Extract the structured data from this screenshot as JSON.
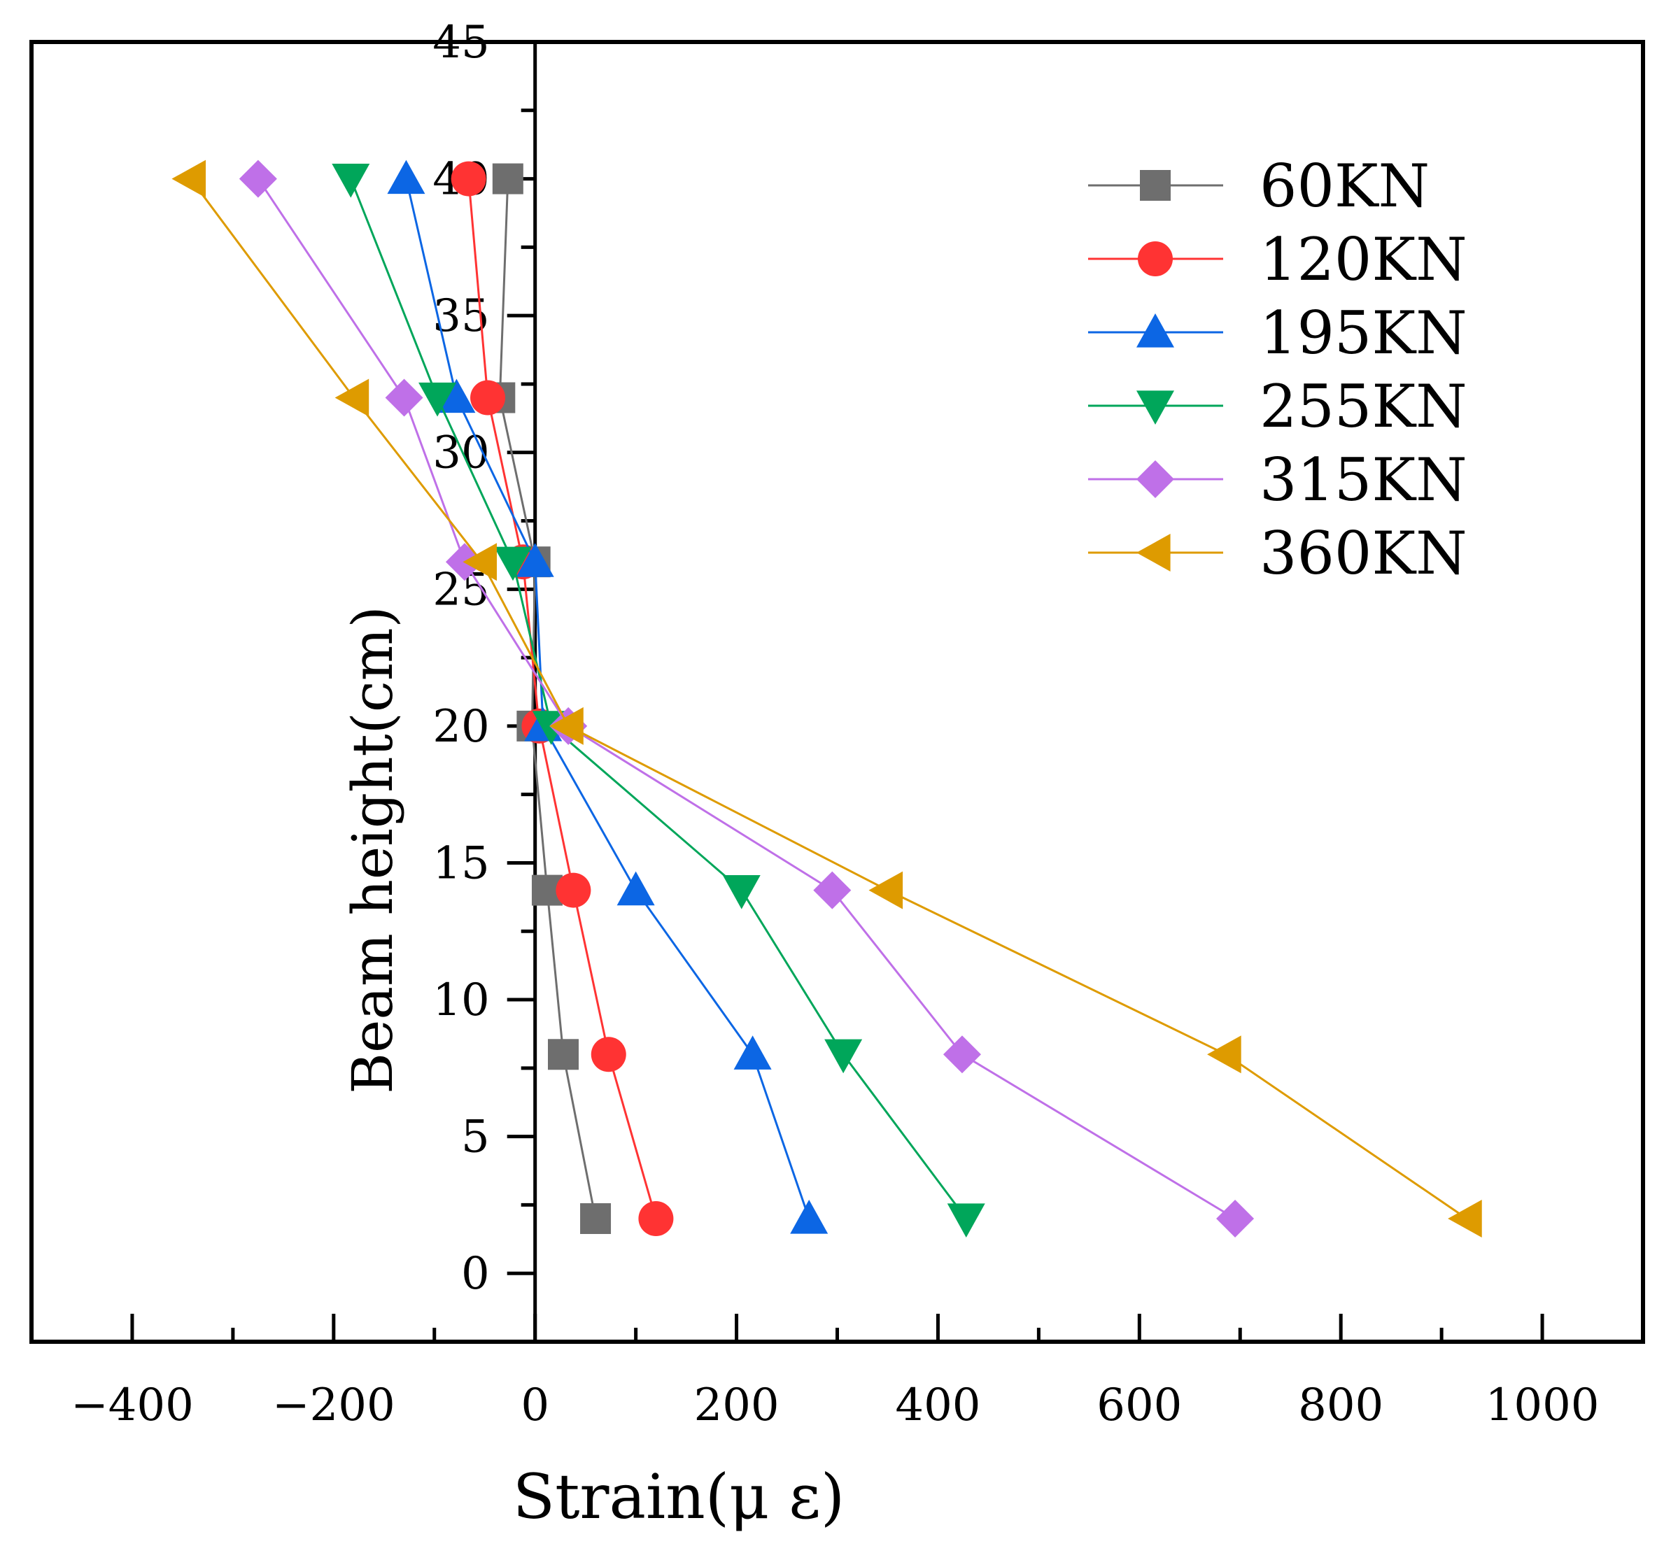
{
  "chart_data": {
    "type": "line",
    "xlabel": "Strain(μ ε)",
    "ylabel": "Beam height(cm)",
    "xlim": [
      -500,
      1100
    ],
    "ylim": [
      -2.5,
      45
    ],
    "xticks": [
      -400,
      -200,
      0,
      200,
      400,
      600,
      800,
      1000
    ],
    "xtick_labels": [
      "−400",
      "−200",
      "0",
      "200",
      "400",
      "600",
      "800",
      "1000"
    ],
    "yticks": [
      0,
      5,
      10,
      15,
      20,
      25,
      30,
      35,
      40,
      45
    ],
    "ytick_labels": [
      "0",
      "5",
      "10",
      "15",
      "20",
      "25",
      "30",
      "35",
      "40",
      "45"
    ],
    "legend_position": "top-right",
    "grid": false,
    "series": [
      {
        "name": "60KN",
        "color": "#6e6e6e",
        "marker": "square",
        "points": [
          [
            60,
            2
          ],
          [
            28,
            8
          ],
          [
            12,
            14
          ],
          [
            -3,
            20
          ],
          [
            0,
            26
          ],
          [
            -35,
            32
          ],
          [
            -27,
            40
          ]
        ]
      },
      {
        "name": "120KN",
        "color": "#ff3333",
        "marker": "circle",
        "points": [
          [
            120,
            2
          ],
          [
            73,
            8
          ],
          [
            38,
            14
          ],
          [
            4,
            20
          ],
          [
            -12,
            26
          ],
          [
            -47,
            32
          ],
          [
            -66,
            40
          ]
        ]
      },
      {
        "name": "195KN",
        "color": "#0c66e4",
        "marker": "triangle-up",
        "points": [
          [
            272,
            2
          ],
          [
            216,
            8
          ],
          [
            100,
            14
          ],
          [
            8,
            20
          ],
          [
            0,
            26
          ],
          [
            -78,
            32
          ],
          [
            -128,
            40
          ]
        ]
      },
      {
        "name": "255KN",
        "color": "#00a65a",
        "marker": "triangle-down",
        "points": [
          [
            428,
            2
          ],
          [
            306,
            8
          ],
          [
            205,
            14
          ],
          [
            16,
            20
          ],
          [
            -22,
            26
          ],
          [
            -97,
            32
          ],
          [
            -183,
            40
          ]
        ]
      },
      {
        "name": "315KN",
        "color": "#bf70e8",
        "marker": "diamond",
        "points": [
          [
            695,
            2
          ],
          [
            424,
            8
          ],
          [
            295,
            14
          ],
          [
            33,
            20
          ],
          [
            -70,
            26
          ],
          [
            -130,
            32
          ],
          [
            -275,
            40
          ]
        ]
      },
      {
        "name": "360KN",
        "color": "#de9b00",
        "marker": "triangle-left",
        "points": [
          [
            925,
            2
          ],
          [
            686,
            8
          ],
          [
            350,
            14
          ],
          [
            33,
            20
          ],
          [
            -53,
            26
          ],
          [
            -180,
            32
          ],
          [
            -342,
            40
          ]
        ]
      }
    ]
  }
}
